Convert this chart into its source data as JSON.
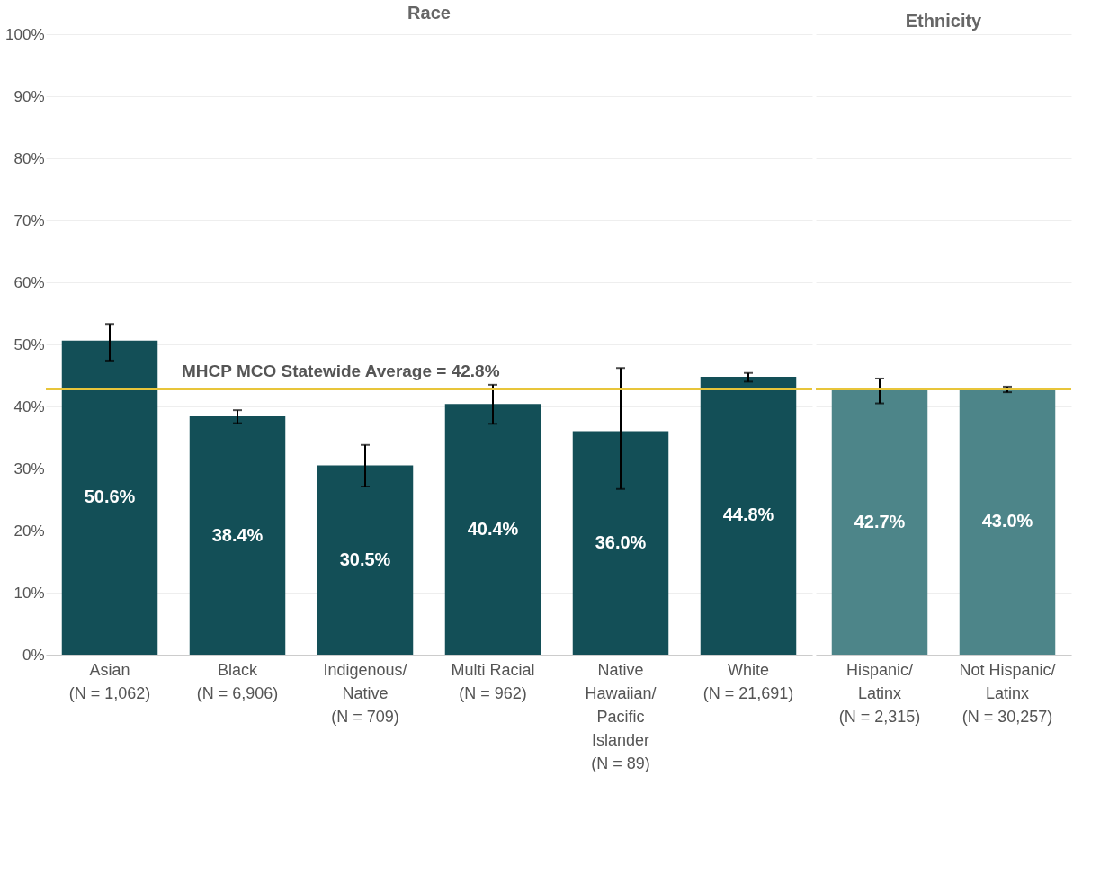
{
  "chart_data": [
    {
      "type": "bar",
      "title": "Race",
      "categories": [
        "Asian\n(N = 1,062)",
        "Black\n(N = 6,906)",
        "Indigenous/\nNative\n(N = 709)",
        "Multi Racial\n(N = 962)",
        "Native\nHawaiian/\nPacific\nIslander\n(N = 89)",
        "White\n(N = 21,691)"
      ],
      "values": [
        50.6,
        38.4,
        30.5,
        40.4,
        36.0,
        44.8
      ],
      "errors": [
        [
          47.4,
          53.3
        ],
        [
          37.3,
          39.4
        ],
        [
          27.1,
          33.8
        ],
        [
          37.2,
          43.5
        ],
        [
          26.7,
          46.2
        ],
        [
          44.0,
          45.4
        ]
      ],
      "color": "#134f57",
      "value_labels": [
        "50.6%",
        "38.4%",
        "30.5%",
        "40.4%",
        "36.0%",
        "44.8%"
      ],
      "ylim": [
        0,
        100
      ],
      "yticks": [
        {
          "value": 0,
          "label": "0%"
        },
        {
          "value": 10,
          "label": "10%"
        },
        {
          "value": 20,
          "label": "20%"
        },
        {
          "value": 30,
          "label": "30%"
        },
        {
          "value": 40,
          "label": "40%"
        },
        {
          "value": 50,
          "label": "50%"
        },
        {
          "value": 60,
          "label": "60%"
        },
        {
          "value": 70,
          "label": "70%"
        },
        {
          "value": 80,
          "label": "80%"
        },
        {
          "value": 90,
          "label": "90%"
        },
        {
          "value": 100,
          "label": "100%"
        }
      ],
      "grid": "y",
      "ref_lines": [
        {
          "axis": "y",
          "value": 42.8,
          "label": "MHCP MCO Statewide Average = 42.8%",
          "color": "#e8c53a"
        }
      ]
    },
    {
      "type": "bar",
      "title": "Ethnicity",
      "categories": [
        "Hispanic/\nLatinx\n(N = 2,315)",
        "Not Hispanic/\nLatinx\n(N = 30,257)"
      ],
      "values": [
        42.7,
        43.0
      ],
      "errors": [
        [
          40.5,
          44.5
        ],
        [
          42.3,
          43.2
        ]
      ],
      "color": "#4d8589",
      "value_labels": [
        "42.7%",
        "43.0%"
      ],
      "ylim": [
        0,
        100
      ],
      "yticks": [
        0,
        10,
        20,
        30,
        40,
        50,
        60,
        70,
        80,
        90,
        100
      ],
      "grid": "y",
      "tick_labels": "x",
      "ref_lines": [
        {
          "axis": "y",
          "value": 42.8,
          "color": "#e8c53a"
        }
      ]
    }
  ]
}
